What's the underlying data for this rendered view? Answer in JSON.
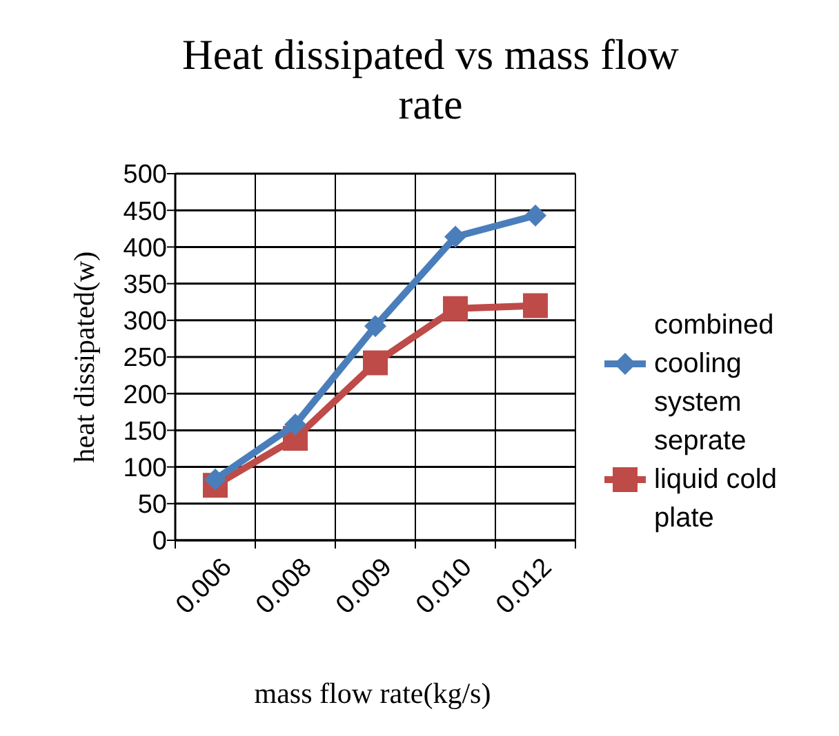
{
  "chart_data": {
    "type": "line",
    "title": "Heat dissipated vs mass flow rate",
    "xlabel": "mass flow rate(kg/s)",
    "ylabel": "heat dissipated(w)",
    "categories": [
      "0.006",
      "0.008",
      "0.009",
      "0.010",
      "0.012"
    ],
    "series": [
      {
        "name": "combined cooling system",
        "color": "#4a7ebb",
        "marker": "diamond",
        "values": [
          83,
          158,
          292,
          414,
          443
        ]
      },
      {
        "name": "seprate liquid cold plate",
        "color": "#be4b48",
        "marker": "square",
        "values": [
          75,
          139,
          242,
          316,
          320
        ]
      }
    ],
    "ylim": [
      0,
      500
    ],
    "yticks": [
      0,
      50,
      100,
      150,
      200,
      250,
      300,
      350,
      400,
      450,
      500
    ],
    "grid": true,
    "legend": "right",
    "line_style": "solid"
  }
}
